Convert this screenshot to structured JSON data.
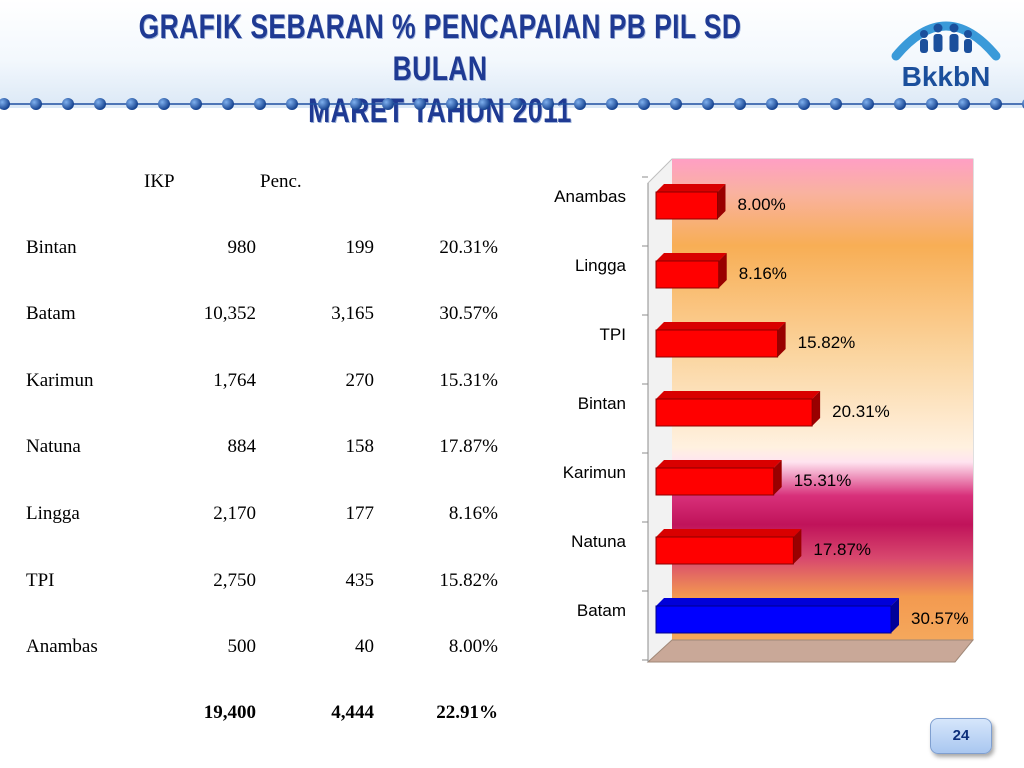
{
  "slide": {
    "title_line1": "GRAFIK SEBARAN % PENCAPAIAN PB PIL SD BULAN",
    "title_line2": "MARET TAHUN 2011",
    "logo_text": "BkkbN",
    "page_number": "24",
    "colors": {
      "title": "#1f3a93",
      "bar_default": "#ff0000",
      "bar_highlight": "#0000ff",
      "dots": "#1f4fa0"
    }
  },
  "table": {
    "headers": [
      "IKP",
      "Penc."
    ],
    "rows": [
      {
        "name": "Bintan",
        "ikp": "980",
        "penc": "199",
        "pct": "20.31%"
      },
      {
        "name": "Batam",
        "ikp": "10,352",
        "penc": "3,165",
        "pct": "30.57%"
      },
      {
        "name": "Karimun",
        "ikp": "1,764",
        "penc": "270",
        "pct": "15.31%"
      },
      {
        "name": "Natuna",
        "ikp": "884",
        "penc": "158",
        "pct": "17.87%"
      },
      {
        "name": "Lingga",
        "ikp": "2,170",
        "penc": "177",
        "pct": "8.16%"
      },
      {
        "name": "TPI",
        "ikp": "2,750",
        "penc": "435",
        "pct": "15.82%"
      },
      {
        "name": "Anambas",
        "ikp": "500",
        "penc": "40",
        "pct": "8.00%"
      }
    ],
    "total": {
      "ikp": "19,400",
      "penc": "4,444",
      "pct": "22.91%"
    }
  },
  "chart_data": {
    "type": "bar",
    "orientation": "horizontal",
    "categories": [
      "Anambas",
      "Lingga",
      "TPI",
      "Bintan",
      "Karimun",
      "Natuna",
      "Batam"
    ],
    "values": [
      8.0,
      8.16,
      15.82,
      20.31,
      15.31,
      17.87,
      30.57
    ],
    "labels": [
      "8.00%",
      "8.16%",
      "15.82%",
      "20.31%",
      "15.31%",
      "17.87%",
      "30.57%"
    ],
    "highlight": "Batam",
    "xlim": [
      0,
      35
    ],
    "grid": false,
    "legend": "none"
  }
}
